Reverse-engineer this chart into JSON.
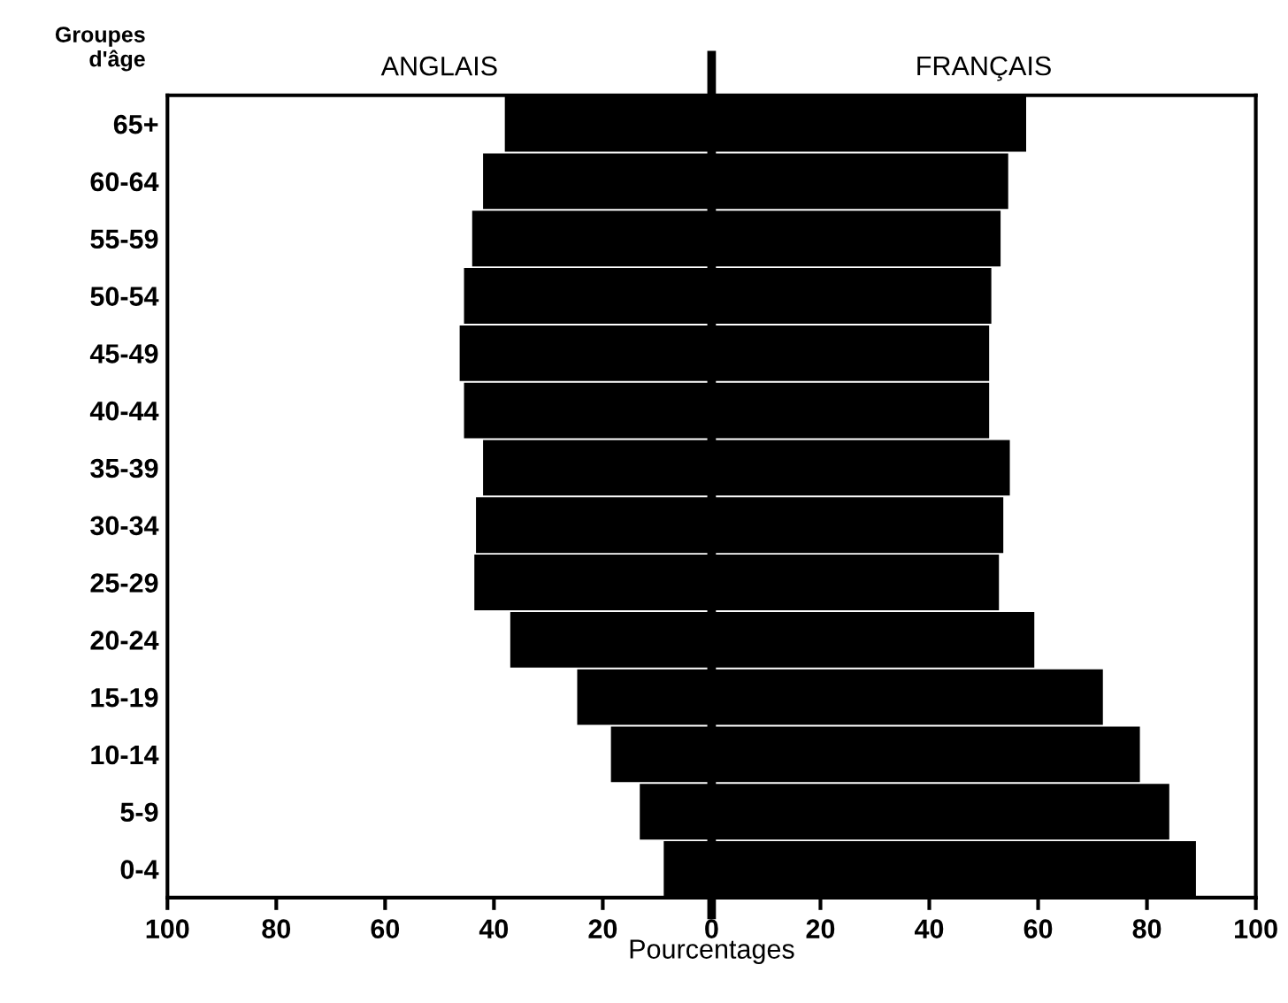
{
  "chart_data": {
    "type": "bar",
    "orientation": "horizontal",
    "ylabel": "Groupes\nd'âge",
    "xlabel": "Pourcentages",
    "categories": [
      "65+",
      "60-64",
      "55-59",
      "50-54",
      "45-49",
      "40-44",
      "35-39",
      "30-34",
      "25-29",
      "20-24",
      "15-19",
      "10-14",
      "5-9",
      "0-4"
    ],
    "series": [
      {
        "name": "ANGLAIS",
        "color": "#000000",
        "values": [
          -38,
          -42,
          -44,
          -45.5,
          -46.3,
          -45.5,
          -42,
          -43.3,
          -43.6,
          -37,
          -24.7,
          -18.5,
          -13.2,
          -8.8
        ]
      },
      {
        "name": "FRANÇAIS",
        "color": "#000000",
        "values": [
          57.8,
          54.5,
          53.1,
          51.4,
          51,
          51,
          54.8,
          53.6,
          52.8,
          59.3,
          71.9,
          78.7,
          84.1,
          89
        ]
      }
    ],
    "xlim": [
      -100,
      100
    ],
    "xticks": [
      {
        "value": -100,
        "label": "100"
      },
      {
        "value": -80,
        "label": "80"
      },
      {
        "value": -60,
        "label": "60"
      },
      {
        "value": -40,
        "label": "40"
      },
      {
        "value": -20,
        "label": "20"
      },
      0,
      20,
      40,
      60,
      80,
      100
    ],
    "ref_lines": [
      {
        "axis": "x",
        "value": 0,
        "color": "#000000"
      }
    ],
    "stacked": true,
    "grid": false,
    "legend": false
  }
}
